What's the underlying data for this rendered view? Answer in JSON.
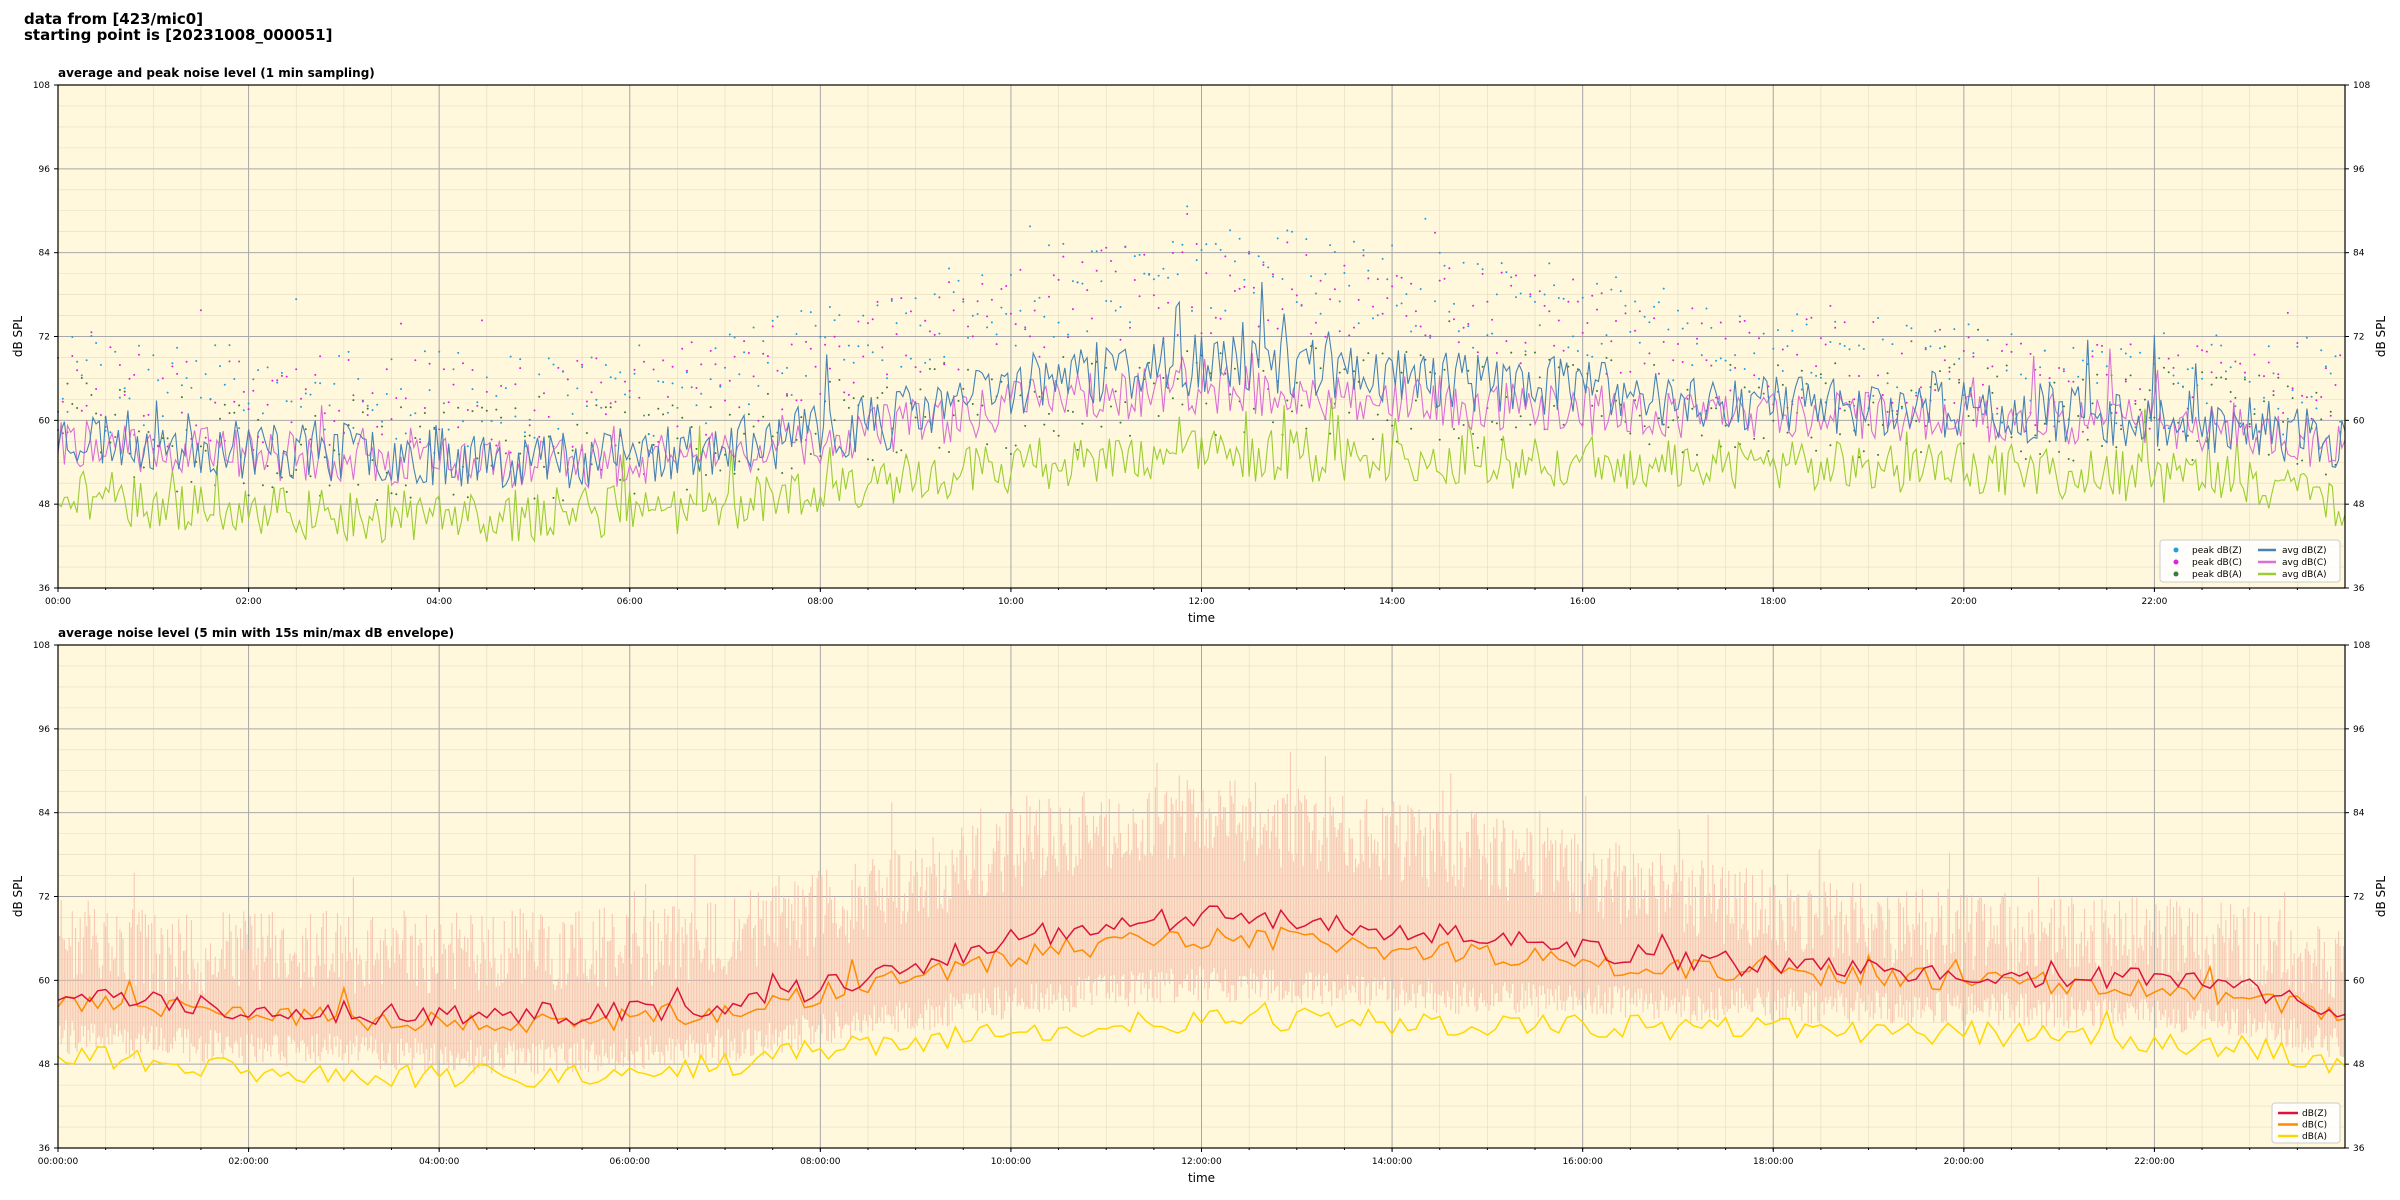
{
  "header": {
    "line1": "data from [423/mic0]",
    "line2": "starting point is [20231008_000051]"
  },
  "colors": {
    "plot_bg": "#fff8dc",
    "peak_z": "#1f9fe0",
    "peak_c": "#e020e0",
    "peak_a": "#3a7a3a",
    "avg_z": "#4682b4",
    "avg_c": "#da70d6",
    "avg_a": "#9acd32",
    "db_z": "#dc143c",
    "db_c": "#ff8c00",
    "db_a": "#ffd700",
    "envelope": "#f4b8a6"
  },
  "chart_data": [
    {
      "type": "scatter+line",
      "title": "average and peak noise level (1 min sampling)",
      "xlabel": "time",
      "ylabel": "dB SPL",
      "ylim": [
        36,
        108
      ],
      "yticks": [
        36,
        48,
        60,
        72,
        84,
        96,
        108
      ],
      "xlim_hours": [
        0,
        24
      ],
      "xtick_labels": [
        "00:00",
        "02:00",
        "04:00",
        "06:00",
        "08:00",
        "10:00",
        "12:00",
        "14:00",
        "16:00",
        "18:00",
        "20:00",
        "22:00"
      ],
      "grid": true,
      "legend_position": "bottom-right",
      "legend": [
        "peak dB(Z)",
        "peak dB(C)",
        "peak dB(A)",
        "avg dB(Z)",
        "avg dB(C)",
        "avg dB(A)"
      ],
      "profile_hours": [
        0,
        1,
        2,
        3,
        4,
        5,
        6,
        7,
        8,
        9,
        10,
        11,
        12,
        13,
        14,
        15,
        16,
        17,
        18,
        19,
        20,
        21,
        22,
        23,
        24
      ],
      "series": [
        {
          "name": "avg dB(Z)",
          "kind": "line",
          "values": [
            58,
            57,
            56,
            55.5,
            55,
            54.5,
            55,
            56,
            58,
            61,
            65,
            67,
            68,
            67.5,
            66.5,
            65.5,
            64.5,
            63,
            62.5,
            62,
            61.5,
            61,
            60.5,
            59,
            57
          ]
        },
        {
          "name": "avg dB(C)",
          "kind": "line",
          "values": [
            57,
            56,
            55,
            54.5,
            54,
            53.5,
            54,
            55,
            57,
            59.5,
            62,
            63.5,
            64.5,
            64,
            63,
            62,
            61.5,
            61,
            61,
            60.5,
            60.5,
            60,
            59.5,
            58,
            56
          ]
        },
        {
          "name": "avg dB(A)",
          "kind": "line",
          "values": [
            50,
            48,
            47,
            46.5,
            46,
            46.5,
            47,
            48,
            50,
            52,
            53,
            54,
            55,
            55,
            54.5,
            54,
            54,
            53.5,
            53.5,
            53,
            53,
            52.5,
            52,
            51,
            48
          ]
        },
        {
          "name": "peak dB(Z)",
          "kind": "scatter",
          "values": [
            66,
            64,
            64,
            63.5,
            63,
            63,
            64,
            66,
            70,
            74,
            77,
            80,
            81,
            80.5,
            79,
            77,
            75,
            72,
            70,
            68,
            67,
            66,
            66,
            65,
            64
          ]
        },
        {
          "name": "peak dB(C)",
          "kind": "scatter",
          "values": [
            65,
            63,
            63,
            62.5,
            62,
            62,
            63,
            65,
            68,
            72,
            75,
            78,
            79,
            78.5,
            77,
            75,
            73,
            70,
            68.5,
            67,
            66,
            65,
            65,
            64,
            63
          ]
        },
        {
          "name": "peak dB(A)",
          "kind": "scatter",
          "values": [
            60,
            57,
            56,
            55.5,
            55,
            55,
            56,
            57,
            59,
            61,
            62,
            63,
            64,
            64,
            63.5,
            63,
            62.5,
            62,
            62,
            61.5,
            61,
            61,
            60.5,
            60,
            58
          ]
        }
      ]
    },
    {
      "type": "line+envelope",
      "title": "average noise level (5 min with 15s min/max dB envelope)",
      "xlabel": "time",
      "ylabel": "dB SPL",
      "ylim": [
        36,
        108
      ],
      "yticks": [
        36,
        48,
        60,
        72,
        84,
        96,
        108
      ],
      "xlim_hours": [
        0,
        24
      ],
      "xtick_labels": [
        "00:00:00",
        "02:00:00",
        "04:00:00",
        "06:00:00",
        "08:00:00",
        "10:00:00",
        "12:00:00",
        "14:00:00",
        "16:00:00",
        "18:00:00",
        "20:00:00",
        "22:00:00"
      ],
      "grid": true,
      "legend_position": "bottom-right",
      "legend": [
        "dB(Z)",
        "dB(C)",
        "dB(A)"
      ],
      "profile_hours": [
        0,
        1,
        2,
        3,
        4,
        5,
        6,
        7,
        8,
        9,
        10,
        11,
        12,
        13,
        14,
        15,
        16,
        17,
        18,
        19,
        20,
        21,
        22,
        23,
        24
      ],
      "series": [
        {
          "name": "dB(Z)",
          "kind": "line",
          "values": [
            58,
            57,
            56,
            55.5,
            55,
            55,
            55.5,
            56.5,
            59,
            62,
            66,
            68,
            69,
            68.5,
            67,
            66,
            64.5,
            63,
            62,
            61.5,
            61,
            60.5,
            60,
            58.5,
            56
          ]
        },
        {
          "name": "dB(C)",
          "kind": "line",
          "values": [
            57,
            56,
            55,
            54.5,
            54,
            54,
            54.5,
            55.5,
            58,
            60.5,
            63.5,
            65,
            66,
            65.5,
            64.5,
            63.5,
            62.5,
            61.5,
            61,
            60.5,
            60,
            59.5,
            59,
            57.5,
            55
          ]
        },
        {
          "name": "dB(A)",
          "kind": "line",
          "values": [
            50,
            48,
            47,
            46.5,
            46,
            46.5,
            47,
            48,
            50,
            51.5,
            52.5,
            53.5,
            54.5,
            54.5,
            54,
            53.5,
            53.5,
            53,
            53,
            52.5,
            52.5,
            52,
            51.5,
            50.5,
            48
          ]
        },
        {
          "name": "envelope max",
          "kind": "band",
          "values": [
            66,
            64,
            64,
            64,
            64,
            64,
            65,
            66,
            70,
            74,
            79,
            82,
            83,
            82,
            80,
            78,
            75,
            72,
            70,
            68,
            67,
            66,
            66,
            65,
            63
          ]
        },
        {
          "name": "envelope min",
          "kind": "band",
          "values": [
            52,
            51,
            50,
            50,
            49,
            49,
            49.5,
            50.5,
            53,
            55,
            57,
            58.5,
            59.5,
            59,
            58,
            57.5,
            57,
            56.5,
            56.5,
            56,
            56,
            55.5,
            55,
            53.5,
            51
          ]
        }
      ]
    }
  ]
}
